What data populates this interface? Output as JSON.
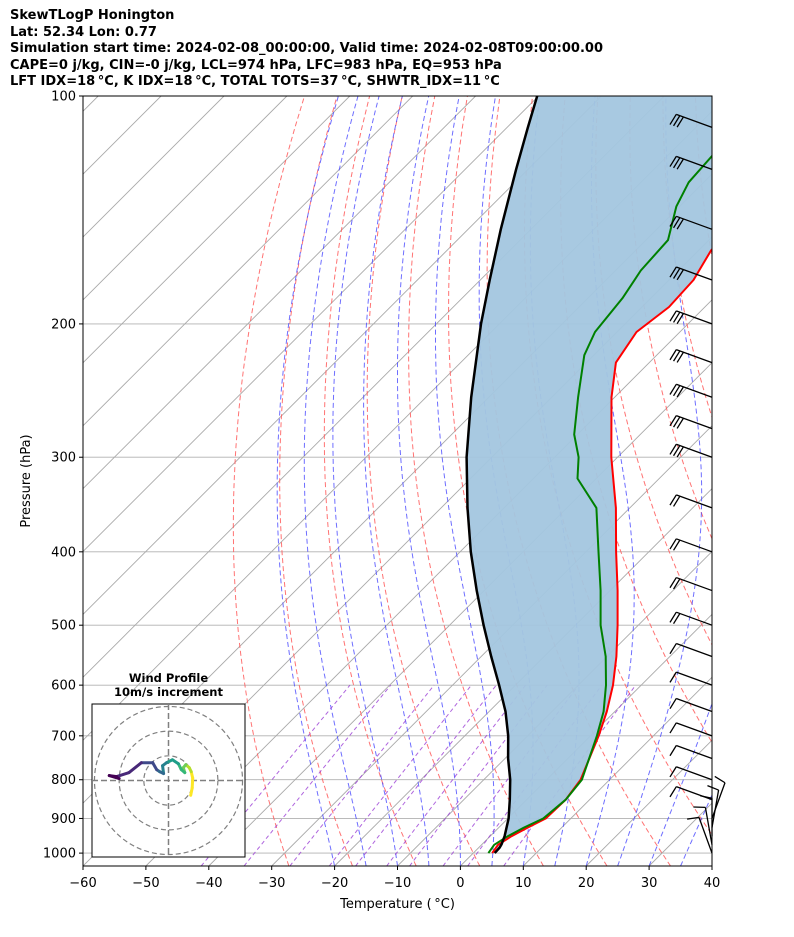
{
  "header": {
    "line1": "SkewTLogP Honington",
    "line2": "Lat: 52.34   Lon: 0.77",
    "line3": "Simulation start time: 2024-02-08_00:00:00, Valid time: 2024-02-08T09:00:00.00",
    "line4": "CAPE=0 j/kg, CIN=-0 j/kg, LCL=974 hPa, LFC=983 hPa, EQ=953 hPa",
    "line5": "LFT IDX=18$^\\circ$C, K IDX=18$^\\circ$C, TOTAL TOTS=37$^\\circ$C, SHWTR_IDX=11$^\\circ$C"
  },
  "colors": {
    "temperature": "#ff0000",
    "dewpoint": "#008000",
    "parcel": "#000000",
    "cape_fill": "#a3c6df",
    "dry_adiabat": "#ff5a5a",
    "moist_adiabat": "#4a4aff",
    "mixing_ratio": "#9b3fd6",
    "isotherm": "#a9a9a9",
    "grid": "#b0b0b0"
  },
  "chart_data": [
    {
      "type": "line",
      "subtype": "skew-t log-p diagram",
      "title": "",
      "xlabel": "Temperature ($^\\circ$C)",
      "ylabel": "Pressure (hPa)",
      "xlim": [
        -60,
        40
      ],
      "ylim": [
        1040,
        100
      ],
      "yscale": "log",
      "x_ticks": [
        -60,
        -50,
        -40,
        -30,
        -20,
        -10,
        0,
        10,
        20,
        30,
        40
      ],
      "y_ticks": [
        1000,
        900,
        800,
        700,
        600,
        500,
        400,
        300,
        200,
        100
      ],
      "grid": true,
      "series": [
        {
          "role": "temperature",
          "points": [
            [
              1000,
              3.0
            ],
            [
              975,
              2.6
            ],
            [
              950,
              3.4
            ],
            [
              925,
              4.6
            ],
            [
              900,
              6.0
            ],
            [
              850,
              6.2
            ],
            [
              800,
              5.4
            ],
            [
              700,
              1.3
            ],
            [
              650,
              -1.3
            ],
            [
              600,
              -4.5
            ],
            [
              550,
              -8.5
            ],
            [
              500,
              -13.3
            ],
            [
              450,
              -18.8
            ],
            [
              400,
              -25.2
            ],
            [
              350,
              -32.2
            ],
            [
              300,
              -41.0
            ],
            [
              250,
              -50.5
            ],
            [
              225,
              -55.3
            ],
            [
              205,
              -56.9
            ],
            [
              190,
              -55.7
            ],
            [
              175,
              -56.1
            ],
            [
              160,
              -58.0
            ],
            [
              140,
              -58.7
            ],
            [
              125,
              -59.5
            ],
            [
              110,
              -61.7
            ],
            [
              100,
              -63.2
            ]
          ]
        },
        {
          "role": "dewpoint",
          "points": [
            [
              1000,
              2.4
            ],
            [
              975,
              2.0
            ],
            [
              950,
              2.8
            ],
            [
              925,
              4.0
            ],
            [
              900,
              5.6
            ],
            [
              850,
              6.2
            ],
            [
              800,
              5.6
            ],
            [
              700,
              1.0
            ],
            [
              650,
              -1.8
            ],
            [
              600,
              -5.6
            ],
            [
              550,
              -10.2
            ],
            [
              500,
              -16.0
            ],
            [
              450,
              -21.5
            ],
            [
              400,
              -28.0
            ],
            [
              350,
              -35.3
            ],
            [
              320,
              -43.0
            ],
            [
              300,
              -46.2
            ],
            [
              280,
              -50.5
            ],
            [
              250,
              -55.8
            ],
            [
              220,
              -61.5
            ],
            [
              205,
              -63.5
            ],
            [
              185,
              -64.5
            ],
            [
              170,
              -66.0
            ],
            [
              155,
              -66.5
            ],
            [
              140,
              -70.5
            ],
            [
              130,
              -72.4
            ],
            [
              110,
              -73.4
            ],
            [
              100,
              -74.8
            ]
          ]
        },
        {
          "role": "parcel",
          "points": [
            [
              1000,
              3.4
            ],
            [
              983,
              3.3
            ],
            [
              974,
              3.1
            ],
            [
              950,
              2.3
            ],
            [
              900,
              0.1
            ],
            [
              850,
              -2.7
            ],
            [
              800,
              -5.8
            ],
            [
              750,
              -9.5
            ],
            [
              700,
              -13.1
            ],
            [
              650,
              -17.4
            ],
            [
              600,
              -22.6
            ],
            [
              550,
              -28.4
            ],
            [
              500,
              -34.6
            ],
            [
              450,
              -41.2
            ],
            [
              400,
              -48.3
            ],
            [
              350,
              -55.8
            ],
            [
              300,
              -64.0
            ],
            [
              250,
              -72.8
            ],
            [
              200,
              -82.9
            ],
            [
              175,
              -88.5
            ],
            [
              150,
              -94.8
            ],
            [
              125,
              -101.9
            ],
            [
              110,
              -106.7
            ],
            [
              100,
              -110.2
            ]
          ]
        }
      ],
      "wind_barbs": {
        "barb_colors": "#000000",
        "levels": [
          1000,
          975,
          950,
          925,
          900,
          850,
          800,
          750,
          700,
          650,
          600,
          550,
          500,
          450,
          400,
          350,
          300,
          275,
          250,
          225,
          200,
          175,
          150,
          125,
          110
        ]
      }
    },
    {
      "type": "line",
      "subtype": "hodograph",
      "title": "Wind Profile\n10m/s increment",
      "colormap": "viridis",
      "points_uv": [
        [
          4.5,
          -3.0
        ],
        [
          4.8,
          -1.5
        ],
        [
          4.9,
          0.5
        ],
        [
          4.6,
          1.8
        ],
        [
          4.2,
          2.6
        ],
        [
          3.5,
          3.2
        ],
        [
          3.0,
          2.6
        ],
        [
          3.3,
          1.6
        ],
        [
          2.6,
          2.2
        ],
        [
          2.0,
          3.4
        ],
        [
          0.8,
          4.2
        ],
        [
          -0.4,
          3.6
        ],
        [
          -1.2,
          3.0
        ],
        [
          -1.0,
          1.4
        ],
        [
          -1.8,
          1.8
        ],
        [
          -2.4,
          2.2
        ],
        [
          -3.2,
          3.6
        ],
        [
          -5.5,
          3.6
        ],
        [
          -8.0,
          1.6
        ],
        [
          -10.5,
          0.8
        ],
        [
          -12.0,
          1.0
        ],
        [
          -10.0,
          0.4
        ]
      ],
      "rings": [
        5,
        10,
        15
      ],
      "axis_range": [
        -15.5,
        15.5
      ]
    }
  ]
}
